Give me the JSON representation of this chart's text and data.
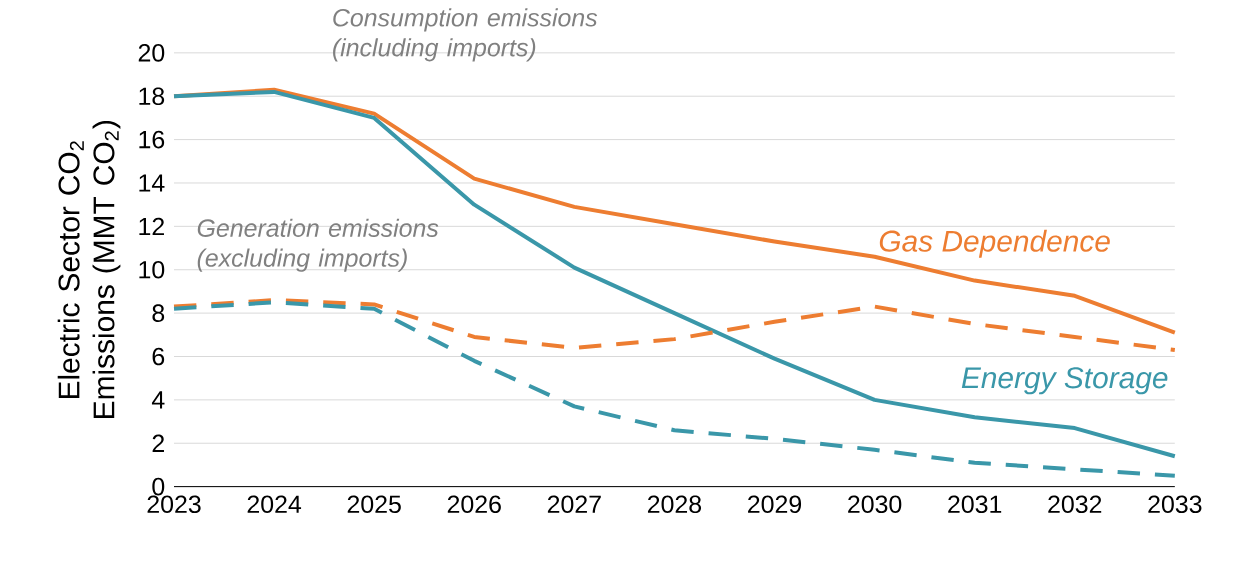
{
  "chart_data": {
    "type": "line",
    "ylabel": "Electric Sector CO$_{2}$ Emissions (MMT CO$_{2}$)",
    "categories": [
      "2023",
      "2024",
      "2025",
      "2026",
      "2027",
      "2028",
      "2029",
      "2030",
      "2031",
      "2032",
      "2033"
    ],
    "ylim": [
      0,
      20
    ],
    "yticks": [
      0,
      2,
      4,
      6,
      8,
      10,
      12,
      14,
      16,
      18,
      20
    ],
    "grid": "y",
    "marker": "none",
    "series": [
      {
        "name": "Gas Dependence",
        "color": "#ed7d31",
        "line_style": "solid",
        "values": [
          18.0,
          18.3,
          17.2,
          14.2,
          12.9,
          12.1,
          11.3,
          10.6,
          9.5,
          8.8,
          7.1
        ]
      },
      {
        "name": "Energy Storage",
        "color": "#3a97a9",
        "line_style": "solid",
        "values": [
          18.0,
          18.2,
          17.0,
          13.0,
          10.1,
          8.0,
          5.9,
          4.0,
          3.2,
          2.7,
          1.4
        ]
      },
      {
        "color": "#ed7d31",
        "line_style": "dashed",
        "values": [
          8.3,
          8.6,
          8.4,
          6.9,
          6.4,
          6.8,
          7.6,
          8.3,
          7.5,
          6.9,
          6.3
        ]
      },
      {
        "color": "#3a97a9",
        "line_style": "dashed",
        "values": [
          8.2,
          8.5,
          8.2,
          5.8,
          3.7,
          2.6,
          2.2,
          1.7,
          1.1,
          0.8,
          0.5
        ]
      }
    ],
    "annotations": [
      "Consumption emissions (including imports)",
      "Generation emissions (excluding imports)"
    ]
  }
}
